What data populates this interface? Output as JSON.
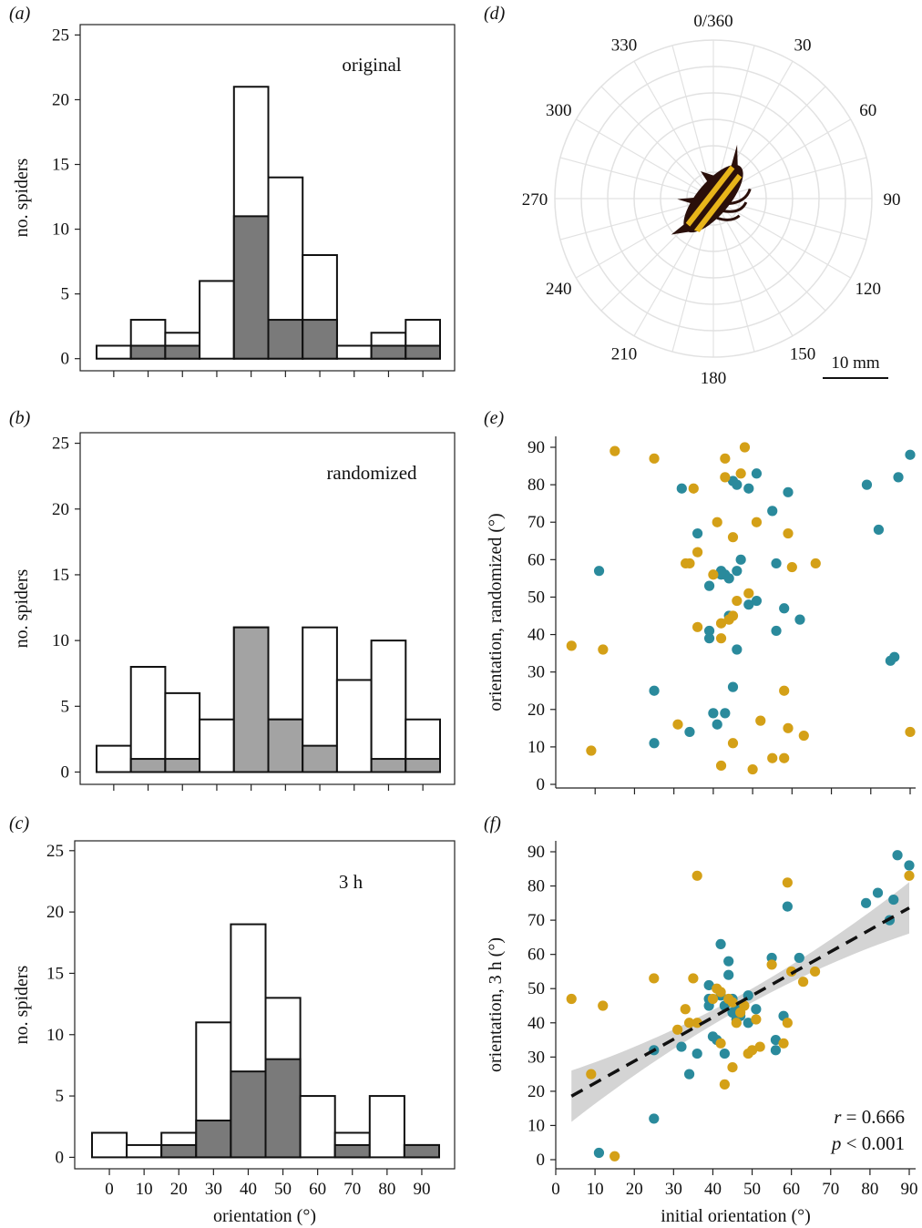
{
  "colors": {
    "bar_fill": "#ffffff",
    "bar_stroke": "#111111",
    "subset_dark": "#7a7a7a",
    "subset_light": "#a3a3a3",
    "teal": "#2a8a9c",
    "gold": "#d4a017",
    "ribbon": "#cfcfcf",
    "polar_grid": "#e2e2e2"
  },
  "chart_data": [
    {
      "panel": "(a)",
      "type": "bar",
      "title": "original",
      "ylabel": "no. spiders",
      "xlabel": "",
      "x_ticks": [
        0,
        10,
        20,
        30,
        40,
        50,
        60,
        70,
        80,
        90
      ],
      "x_tick_labels_shown": false,
      "y_ticks": [
        0,
        5,
        10,
        15,
        20,
        25
      ],
      "ylim": [
        0,
        25
      ],
      "bin_centers": [
        0,
        10,
        20,
        30,
        40,
        50,
        60,
        70,
        80,
        90
      ],
      "series": [
        {
          "role": "total",
          "values": [
            1,
            3,
            2,
            6,
            21,
            14,
            8,
            1,
            2,
            3
          ]
        },
        {
          "role": "subset",
          "values": [
            0,
            1,
            1,
            0,
            11,
            3,
            3,
            0,
            1,
            1
          ]
        }
      ],
      "subset_color": "dark"
    },
    {
      "panel": "(b)",
      "type": "bar",
      "title": "randomized",
      "ylabel": "no. spiders",
      "xlabel": "",
      "x_ticks": [
        0,
        10,
        20,
        30,
        40,
        50,
        60,
        70,
        80,
        90
      ],
      "x_tick_labels_shown": false,
      "y_ticks": [
        0,
        5,
        10,
        15,
        20,
        25
      ],
      "ylim": [
        0,
        25
      ],
      "bin_centers": [
        0,
        10,
        20,
        30,
        40,
        50,
        60,
        70,
        80,
        90
      ],
      "series": [
        {
          "role": "total",
          "values": [
            2,
            8,
            6,
            4,
            11,
            4,
            11,
            7,
            10,
            4
          ]
        },
        {
          "role": "subset",
          "values": [
            0,
            1,
            1,
            0,
            11,
            4,
            2,
            0,
            1,
            1
          ]
        }
      ],
      "subset_color": "light"
    },
    {
      "panel": "(c)",
      "type": "bar",
      "title": "3 h",
      "ylabel": "no. spiders",
      "xlabel": "orientation (°)",
      "x_ticks": [
        0,
        10,
        20,
        30,
        40,
        50,
        60,
        70,
        80,
        90
      ],
      "x_tick_labels_shown": true,
      "y_ticks": [
        0,
        5,
        10,
        15,
        20,
        25
      ],
      "ylim": [
        0,
        25
      ],
      "bin_centers": [
        0,
        10,
        20,
        30,
        40,
        50,
        60,
        70,
        80,
        90
      ],
      "series": [
        {
          "role": "total",
          "values": [
            2,
            1,
            2,
            11,
            19,
            13,
            5,
            2,
            5,
            1
          ]
        },
        {
          "role": "subset",
          "values": [
            0,
            0,
            1,
            3,
            7,
            8,
            0,
            1,
            0,
            1
          ]
        }
      ],
      "subset_color": "dark"
    },
    {
      "panel": "(d)",
      "type": "polar",
      "angle_labels": [
        "0/360",
        "30",
        "60",
        "90",
        "120",
        "150",
        "180",
        "210",
        "240",
        "270",
        "300",
        "330"
      ],
      "angle_values": [
        0,
        30,
        60,
        90,
        120,
        150,
        180,
        210,
        240,
        270,
        300,
        330
      ],
      "scale_bar_label": "10 mm",
      "specimen_orientation_deg": 40
    },
    {
      "panel": "(e)",
      "type": "scatter",
      "ylabel": "orientation, randomized (°)",
      "xlabel": "",
      "xlim": [
        0,
        90
      ],
      "ylim": [
        0,
        90
      ],
      "x_ticks": [
        10,
        20,
        30,
        40,
        50,
        60,
        70,
        80,
        90
      ],
      "y_ticks": [
        0,
        10,
        20,
        30,
        40,
        50,
        60,
        70,
        80,
        90
      ],
      "x_tick_labels_shown": false,
      "series": [
        {
          "color": "teal",
          "points": [
            [
              11,
              57
            ],
            [
              25,
              25
            ],
            [
              25,
              11
            ],
            [
              32,
              79
            ],
            [
              34,
              14
            ],
            [
              36,
              67
            ],
            [
              39,
              53
            ],
            [
              39,
              41
            ],
            [
              39,
              39
            ],
            [
              40,
              19
            ],
            [
              41,
              16
            ],
            [
              42,
              57
            ],
            [
              42,
              56
            ],
            [
              43,
              19
            ],
            [
              43,
              56
            ],
            [
              44,
              45
            ],
            [
              44,
              55
            ],
            [
              45,
              81
            ],
            [
              45,
              26
            ],
            [
              46,
              80
            ],
            [
              46,
              36
            ],
            [
              46,
              57
            ],
            [
              47,
              60
            ],
            [
              49,
              79
            ],
            [
              49,
              48
            ],
            [
              51,
              83
            ],
            [
              51,
              49
            ],
            [
              55,
              73
            ],
            [
              56,
              59
            ],
            [
              56,
              41
            ],
            [
              58,
              47
            ],
            [
              59,
              78
            ],
            [
              62,
              44
            ],
            [
              79,
              80
            ],
            [
              82,
              68
            ],
            [
              85,
              33
            ],
            [
              86,
              34
            ],
            [
              87,
              82
            ],
            [
              90,
              88
            ]
          ]
        },
        {
          "color": "gold",
          "points": [
            [
              4,
              37
            ],
            [
              9,
              9
            ],
            [
              12,
              36
            ],
            [
              15,
              89
            ],
            [
              25,
              87
            ],
            [
              31,
              16
            ],
            [
              33,
              59
            ],
            [
              34,
              59
            ],
            [
              35,
              79
            ],
            [
              36,
              62
            ],
            [
              36,
              42
            ],
            [
              40,
              56
            ],
            [
              41,
              70
            ],
            [
              42,
              43
            ],
            [
              42,
              39
            ],
            [
              42,
              5
            ],
            [
              43,
              87
            ],
            [
              43,
              82
            ],
            [
              44,
              44
            ],
            [
              45,
              45
            ],
            [
              45,
              66
            ],
            [
              45,
              11
            ],
            [
              46,
              49
            ],
            [
              47,
              83
            ],
            [
              48,
              90
            ],
            [
              49,
              51
            ],
            [
              50,
              4
            ],
            [
              51,
              70
            ],
            [
              52,
              17
            ],
            [
              55,
              7
            ],
            [
              58,
              25
            ],
            [
              58,
              7
            ],
            [
              59,
              67
            ],
            [
              59,
              15
            ],
            [
              60,
              58
            ],
            [
              63,
              13
            ],
            [
              66,
              59
            ],
            [
              90,
              14
            ]
          ]
        }
      ]
    },
    {
      "panel": "(f)",
      "type": "scatter",
      "ylabel": "orientation, 3 h (°)",
      "xlabel": "initial orientation (°)",
      "xlim": [
        0,
        90
      ],
      "ylim": [
        0,
        90
      ],
      "x_ticks": [
        0,
        10,
        20,
        30,
        40,
        50,
        60,
        70,
        80,
        90
      ],
      "y_ticks": [
        0,
        10,
        20,
        30,
        40,
        50,
        60,
        70,
        80,
        90
      ],
      "x_tick_labels_shown": true,
      "regression": {
        "intercept": 16.0,
        "slope": 0.64,
        "ci_halfwidth_at_ends": 7.5,
        "ci_halfwidth_at_center": 2.0,
        "x_center": 47
      },
      "stats": {
        "r_label": "r",
        "r_value": "0.666",
        "p_label": "p",
        "p_value": "0.001"
      },
      "series": [
        {
          "color": "teal",
          "points": [
            [
              11,
              2
            ],
            [
              25,
              32
            ],
            [
              25,
              12
            ],
            [
              32,
              33
            ],
            [
              34,
              25
            ],
            [
              36,
              31
            ],
            [
              39,
              51
            ],
            [
              39,
              47
            ],
            [
              39,
              45
            ],
            [
              40,
              36
            ],
            [
              41,
              35
            ],
            [
              42,
              63
            ],
            [
              42,
              48
            ],
            [
              43,
              31
            ],
            [
              43,
              45
            ],
            [
              44,
              58
            ],
            [
              44,
              54
            ],
            [
              45,
              47
            ],
            [
              45,
              43
            ],
            [
              46,
              41
            ],
            [
              46,
              44
            ],
            [
              47,
              42
            ],
            [
              47,
              45
            ],
            [
              49,
              48
            ],
            [
              49,
              40
            ],
            [
              51,
              44
            ],
            [
              55,
              59
            ],
            [
              56,
              35
            ],
            [
              56,
              32
            ],
            [
              58,
              42
            ],
            [
              59,
              74
            ],
            [
              62,
              59
            ],
            [
              79,
              75
            ],
            [
              82,
              78
            ],
            [
              85,
              70
            ],
            [
              86,
              76
            ],
            [
              87,
              89
            ],
            [
              90,
              86
            ]
          ]
        },
        {
          "color": "gold",
          "points": [
            [
              4,
              47
            ],
            [
              9,
              25
            ],
            [
              12,
              45
            ],
            [
              15,
              1
            ],
            [
              25,
              53
            ],
            [
              31,
              38
            ],
            [
              33,
              44
            ],
            [
              34,
              40
            ],
            [
              35,
              53
            ],
            [
              36,
              83
            ],
            [
              36,
              40
            ],
            [
              40,
              47
            ],
            [
              41,
              50
            ],
            [
              42,
              49
            ],
            [
              42,
              34
            ],
            [
              43,
              22
            ],
            [
              44,
              47
            ],
            [
              45,
              46
            ],
            [
              45,
              27
            ],
            [
              46,
              40
            ],
            [
              47,
              43
            ],
            [
              48,
              45
            ],
            [
              49,
              31
            ],
            [
              50,
              32
            ],
            [
              51,
              41
            ],
            [
              52,
              33
            ],
            [
              55,
              57
            ],
            [
              58,
              34
            ],
            [
              59,
              81
            ],
            [
              59,
              40
            ],
            [
              60,
              55
            ],
            [
              63,
              52
            ],
            [
              66,
              55
            ],
            [
              90,
              83
            ]
          ]
        }
      ]
    }
  ]
}
